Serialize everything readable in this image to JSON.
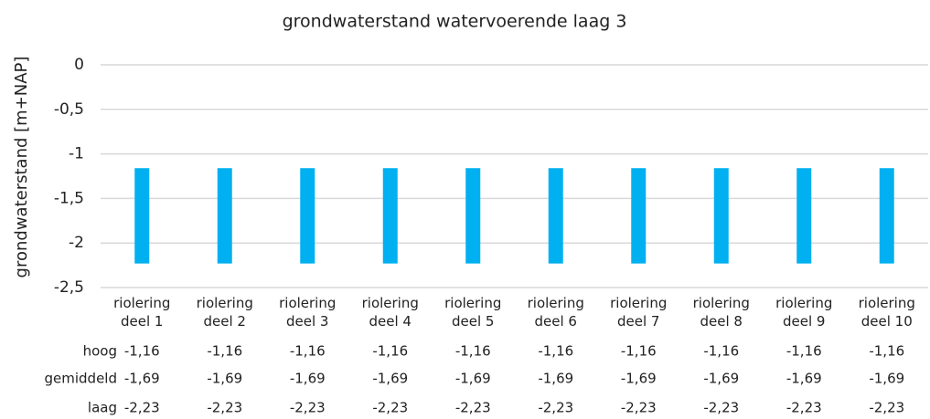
{
  "chart_data": {
    "type": "bar",
    "title": "grondwaterstand watervoerende laag 3",
    "y_label": "grondwaterstand [m+NAP]",
    "categories": [
      "riolering deel 1",
      "riolering deel 2",
      "riolering deel 3",
      "riolering deel 4",
      "riolering deel 5",
      "riolering deel 6",
      "riolering deel 7",
      "riolering deel 8",
      "riolering deel 9",
      "riolering deel 10"
    ],
    "series": [
      {
        "name": "hoog",
        "values": [
          -1.16,
          -1.16,
          -1.16,
          -1.16,
          -1.16,
          -1.16,
          -1.16,
          -1.16,
          -1.16,
          -1.16
        ],
        "value_labels": [
          "-1,16",
          "-1,16",
          "-1,16",
          "-1,16",
          "-1,16",
          "-1,16",
          "-1,16",
          "-1,16",
          "-1,16",
          "-1,16"
        ]
      },
      {
        "name": "gemiddeld",
        "values": [
          -1.69,
          -1.69,
          -1.69,
          -1.69,
          -1.69,
          -1.69,
          -1.69,
          -1.69,
          -1.69,
          -1.69
        ],
        "value_labels": [
          "-1,69",
          "-1,69",
          "-1,69",
          "-1,69",
          "-1,69",
          "-1,69",
          "-1,69",
          "-1,69",
          "-1,69",
          "-1,69"
        ]
      },
      {
        "name": "laag",
        "values": [
          -2.23,
          -2.23,
          -2.23,
          -2.23,
          -2.23,
          -2.23,
          -2.23,
          -2.23,
          -2.23,
          -2.23
        ],
        "value_labels": [
          "-2,23",
          "-2,23",
          "-2,23",
          "-2,23",
          "-2,23",
          "-2,23",
          "-2,23",
          "-2,23",
          "-2,23",
          "-2,23"
        ]
      }
    ],
    "color": "#00b0f0",
    "ylim": [
      -2.5,
      0
    ],
    "yticks": [
      0,
      {
        "value": -0.5,
        "label": "-0,5"
      },
      -1,
      {
        "value": -1.5,
        "label": "-1,5"
      },
      -2,
      {
        "value": -2.5,
        "label": "-2,5"
      }
    ],
    "grid": true
  }
}
